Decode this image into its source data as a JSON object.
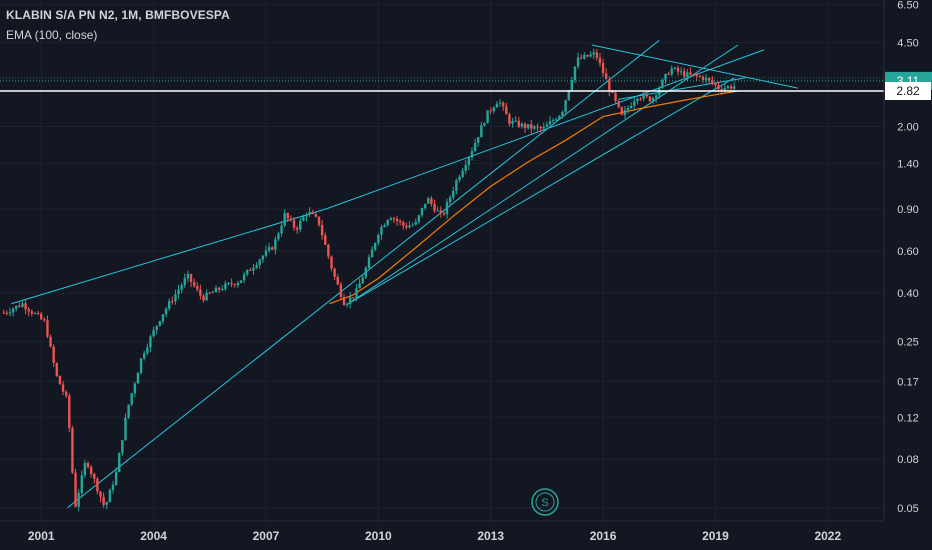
{
  "header": {
    "title": "KLABIN S/A PN N2, 1M, BMFBOVESPA",
    "indicator": "EMA (100, close)"
  },
  "colors": {
    "background": "#131722",
    "grid": "#1e2230",
    "axis_text": "#d1d4dc",
    "up": "#26a69a",
    "down": "#ef5350",
    "ema": "#f57c00",
    "trendline": "#26c6da",
    "price_line": "#ffffff",
    "last_price_badge": "#26a69a"
  },
  "chart_data": {
    "type": "candlestick",
    "y_scale": "log",
    "ylim": [
      0.044,
      6.8
    ],
    "xlim": [
      1999.9,
      2023.5
    ],
    "y_ticks": [
      "6.50",
      "4.50",
      "3.11",
      "2.82",
      "2.00",
      "1.40",
      "0.90",
      "0.60",
      "0.40",
      "0.25",
      "0.17",
      "0.12",
      "0.08",
      "0.05"
    ],
    "x_ticks": [
      "2001",
      "2004",
      "2007",
      "2010",
      "2013",
      "2016",
      "2019",
      "2022"
    ],
    "price_badges": [
      {
        "label": "3.11",
        "value": 3.11,
        "style": "filled"
      },
      {
        "label": "2.82",
        "value": 2.82,
        "style": "outlined"
      }
    ],
    "anchors": [
      [
        2000.0,
        0.33
      ],
      [
        2000.5,
        0.36
      ],
      [
        2001.1,
        0.3
      ],
      [
        2001.4,
        0.18
      ],
      [
        2001.7,
        0.14
      ],
      [
        2001.9,
        0.05
      ],
      [
        2002.2,
        0.08
      ],
      [
        2002.7,
        0.05
      ],
      [
        2003.0,
        0.07
      ],
      [
        2003.3,
        0.13
      ],
      [
        2003.7,
        0.22
      ],
      [
        2004.2,
        0.32
      ],
      [
        2004.9,
        0.47
      ],
      [
        2005.3,
        0.38
      ],
      [
        2005.8,
        0.42
      ],
      [
        2006.3,
        0.45
      ],
      [
        2006.8,
        0.55
      ],
      [
        2007.2,
        0.63
      ],
      [
        2007.5,
        0.85
      ],
      [
        2007.8,
        0.74
      ],
      [
        2008.1,
        0.88
      ],
      [
        2008.4,
        0.8
      ],
      [
        2008.8,
        0.48
      ],
      [
        2009.1,
        0.36
      ],
      [
        2009.4,
        0.4
      ],
      [
        2009.7,
        0.52
      ],
      [
        2010.0,
        0.72
      ],
      [
        2010.3,
        0.85
      ],
      [
        2010.7,
        0.76
      ],
      [
        2011.0,
        0.78
      ],
      [
        2011.3,
        1.0
      ],
      [
        2011.7,
        0.83
      ],
      [
        2012.1,
        1.2
      ],
      [
        2012.5,
        1.6
      ],
      [
        2012.9,
        2.25
      ],
      [
        2013.2,
        2.6
      ],
      [
        2013.5,
        2.1
      ],
      [
        2013.9,
        2.0
      ],
      [
        2014.4,
        1.95
      ],
      [
        2014.9,
        2.3
      ],
      [
        2015.3,
        3.8
      ],
      [
        2015.8,
        4.05
      ],
      [
        2016.2,
        2.8
      ],
      [
        2016.5,
        2.2
      ],
      [
        2016.9,
        2.7
      ],
      [
        2017.3,
        2.6
      ],
      [
        2017.8,
        3.5
      ],
      [
        2018.2,
        3.3
      ],
      [
        2018.7,
        3.2
      ],
      [
        2019.1,
        2.9
      ],
      [
        2019.5,
        2.95
      ]
    ],
    "ema_anchors": [
      [
        2008.7,
        0.36
      ],
      [
        2009.3,
        0.39
      ],
      [
        2010.0,
        0.46
      ],
      [
        2011.0,
        0.62
      ],
      [
        2012.0,
        0.84
      ],
      [
        2013.0,
        1.12
      ],
      [
        2014.0,
        1.42
      ],
      [
        2015.0,
        1.75
      ],
      [
        2016.0,
        2.2
      ],
      [
        2017.0,
        2.38
      ],
      [
        2018.0,
        2.55
      ],
      [
        2019.0,
        2.72
      ],
      [
        2019.6,
        2.82
      ]
    ],
    "trendlines": [
      [
        [
          2000.2,
          0.36
        ],
        [
          2008.6,
          0.9
        ]
      ],
      [
        [
          2008.6,
          0.9
        ],
        [
          2020.3,
          4.2
        ]
      ],
      [
        [
          2001.7,
          0.05
        ],
        [
          2017.5,
          4.6
        ]
      ],
      [
        [
          2009.2,
          0.36
        ],
        [
          2019.6,
          4.4
        ]
      ],
      [
        [
          2009.2,
          0.36
        ],
        [
          2019.5,
          3.2
        ]
      ],
      [
        [
          2015.7,
          4.4
        ],
        [
          2021.2,
          2.9
        ]
      ],
      [
        [
          2016.4,
          2.6
        ],
        [
          2019.8,
          3.2
        ]
      ]
    ]
  },
  "watermark": {
    "label": "S"
  }
}
